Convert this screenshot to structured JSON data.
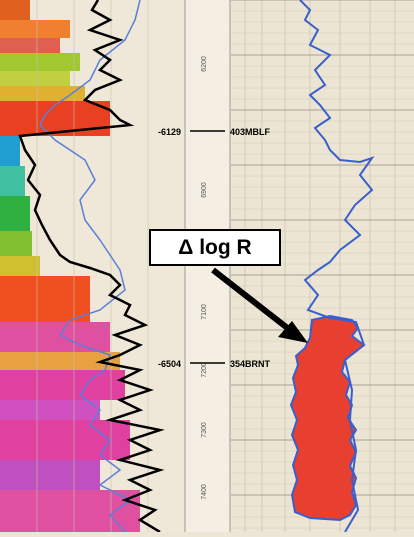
{
  "depth_ticks": [
    {
      "label": "6200",
      "depth": 6200
    },
    {
      "label": "6900",
      "depth": 6900
    },
    {
      "label": "7100",
      "depth": 7100
    },
    {
      "label": "7200",
      "depth": 7200
    },
    {
      "label": "7300",
      "depth": 7300
    },
    {
      "label": "7400",
      "depth": 7400
    }
  ],
  "formation_tops": [
    {
      "subsea": "-6129",
      "name": "403MBLF"
    },
    {
      "subsea": "-6504",
      "name": "354BRNT"
    }
  ],
  "callout": {
    "text": "Δ log R"
  },
  "colors": {
    "gamma_fill_shallow": "#e04020",
    "gamma_fill_green": "#30a040",
    "gamma_fill_magenta": "#e040a0",
    "resistivity_curve": "#3a5fcd",
    "delta_logr_fill": "#e84030",
    "gamma_curve": "#000000"
  }
}
